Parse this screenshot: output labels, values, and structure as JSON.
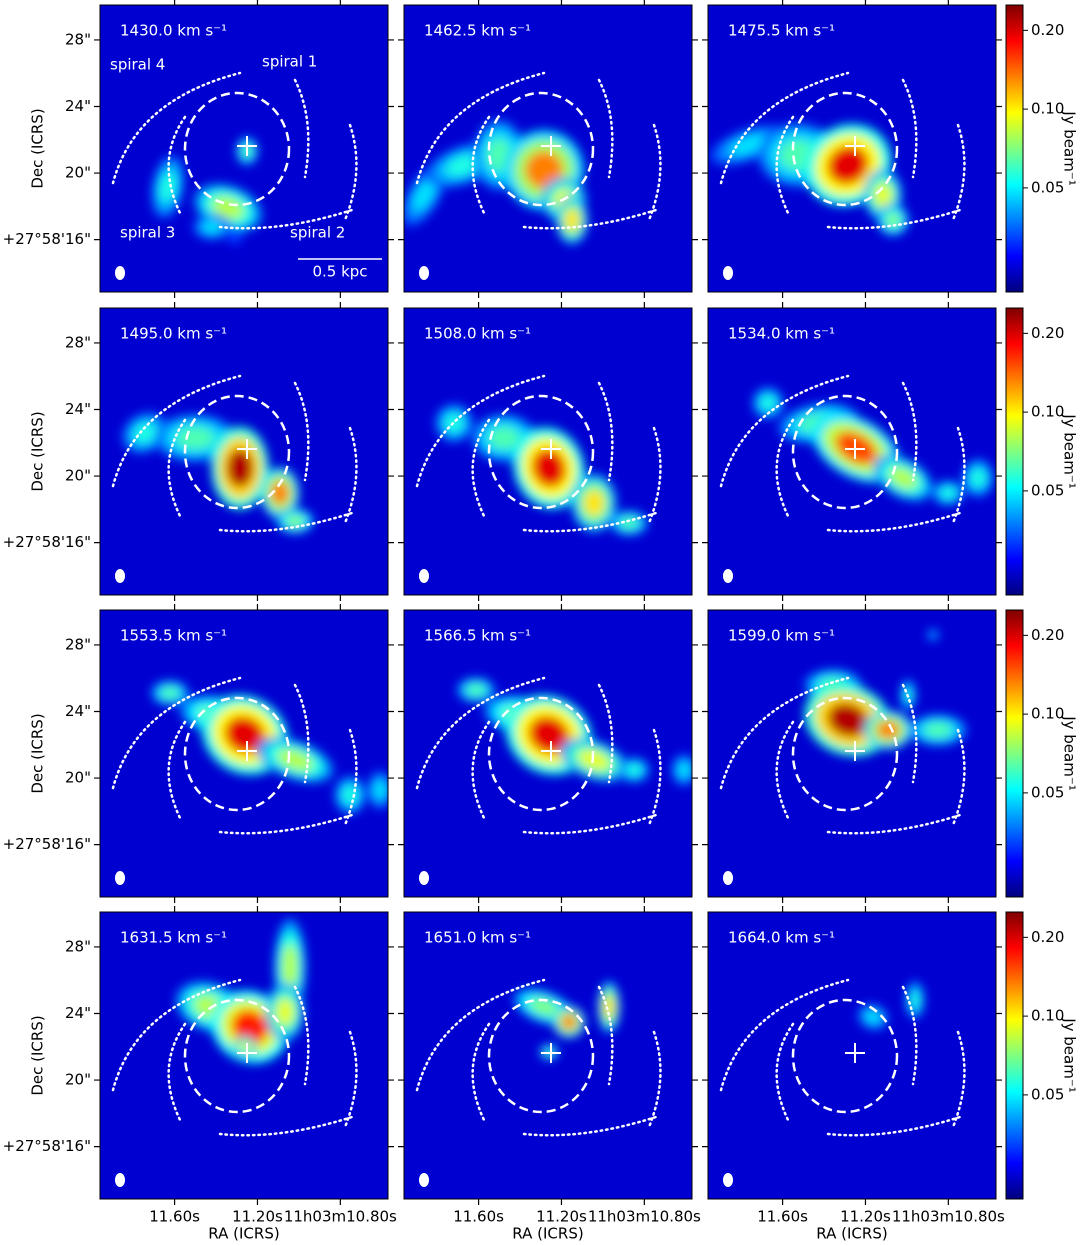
{
  "chart_data": {
    "type": "channel-maps",
    "titles": [
      "1430.0 km s⁻¹",
      "1462.5 km s⁻¹",
      "1475.5 km s⁻¹",
      "1495.0 km s⁻¹",
      "1508.0 km s⁻¹",
      "1534.0 km s⁻¹",
      "1553.5 km s⁻¹",
      "1566.5 km s⁻¹",
      "1599.0 km s⁻¹",
      "1631.5 km s⁻¹",
      "1651.0 km s⁻¹",
      "1664.0 km s⁻¹"
    ],
    "xlabel": "RA (ICRS)",
    "ylabel": "Dec (ICRS)",
    "xlim": [
      11.96,
      10.57
    ],
    "ylim": [
      12.85,
      30.1
    ],
    "xticks": [
      {
        "value": 11.6,
        "label": "11.60s"
      },
      {
        "value": 11.2,
        "label": "11.20s"
      },
      {
        "value": 10.8,
        "label": "11h03m10.80s"
      }
    ],
    "yticks": [
      {
        "value": 16,
        "label": "+27°58'16\""
      },
      {
        "value": 20,
        "label": "20\""
      },
      {
        "value": 24,
        "label": "24\""
      },
      {
        "value": 28,
        "label": "28\""
      }
    ],
    "colorbar": {
      "label": "Jy beam⁻¹",
      "lim": [
        0.02,
        0.25
      ],
      "ticks": [
        0.05,
        {
          "value": 0.1,
          "label": "0.10"
        },
        {
          "value": 0.2,
          "label": "0.20"
        }
      ],
      "scale": "log",
      "colormap": "jet"
    },
    "annotations": [
      "spiral 1",
      "spiral 2",
      "spiral 3",
      "spiral 4"
    ],
    "scalebar": "0.5 kpc"
  }
}
